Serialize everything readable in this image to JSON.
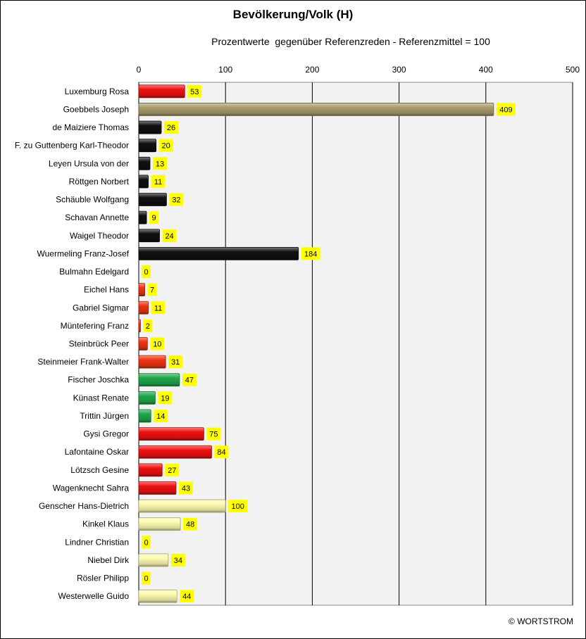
{
  "chart_data": {
    "type": "bar",
    "orientation": "horizontal",
    "title": "Bevölkerung/Volk (H)",
    "subtitle": "Prozentwerte  gegenüber Referenzreden - Referenzmittel = 100",
    "xlim": [
      0,
      500
    ],
    "xticks": [
      0,
      100,
      200,
      300,
      400,
      500
    ],
    "grid": true,
    "data_labels": true,
    "categories": [
      "Luxemburg Rosa",
      "Goebbels Joseph",
      "de Maiziere Thomas",
      "F. zu Guttenberg Karl-Theodor",
      "Leyen Ursula von der",
      "Röttgen Norbert",
      "Schäuble Wolfgang",
      "Schavan Annette",
      "Waigel Theodor",
      "Wuermeling Franz-Josef",
      "Bulmahn Edelgard",
      "Eichel Hans",
      "Gabriel Sigmar",
      "Müntefering Franz",
      "Steinbrück Peer",
      "Steinmeier Frank-Walter",
      "Fischer Joschka",
      "Künast Renate",
      "Trittin Jürgen",
      "Gysi Gregor",
      "Lafontaine Oskar",
      "Lötzsch Gesine",
      "Wagenknecht Sahra",
      "Genscher Hans-Dietrich",
      "Kinkel Klaus",
      "Lindner Christian",
      "Niebel Dirk",
      "Rösler Philipp",
      "Westerwelle Guido"
    ],
    "values": [
      53,
      409,
      26,
      20,
      13,
      11,
      32,
      9,
      24,
      184,
      0,
      7,
      11,
      2,
      10,
      31,
      47,
      19,
      14,
      75,
      84,
      27,
      43,
      100,
      48,
      0,
      34,
      0,
      44
    ],
    "bar_colors": [
      "#ee1111",
      "#a89c6a",
      "#111111",
      "#111111",
      "#111111",
      "#111111",
      "#111111",
      "#111111",
      "#111111",
      "#111111",
      "#ee3311",
      "#ee3311",
      "#ee3311",
      "#ee3311",
      "#ee3311",
      "#ee3311",
      "#1fa64a",
      "#1fa64a",
      "#1fa64a",
      "#ee1111",
      "#ee1111",
      "#ee1111",
      "#ee1111",
      "#fdfbb0",
      "#fdfbb0",
      "#fdfbb0",
      "#fdfbb0",
      "#fdfbb0",
      "#fdfbb0"
    ],
    "label_background": "#ffff00",
    "plot_background": "#f2f2f2"
  },
  "footer": {
    "copyright": "© WORTSTROM"
  }
}
